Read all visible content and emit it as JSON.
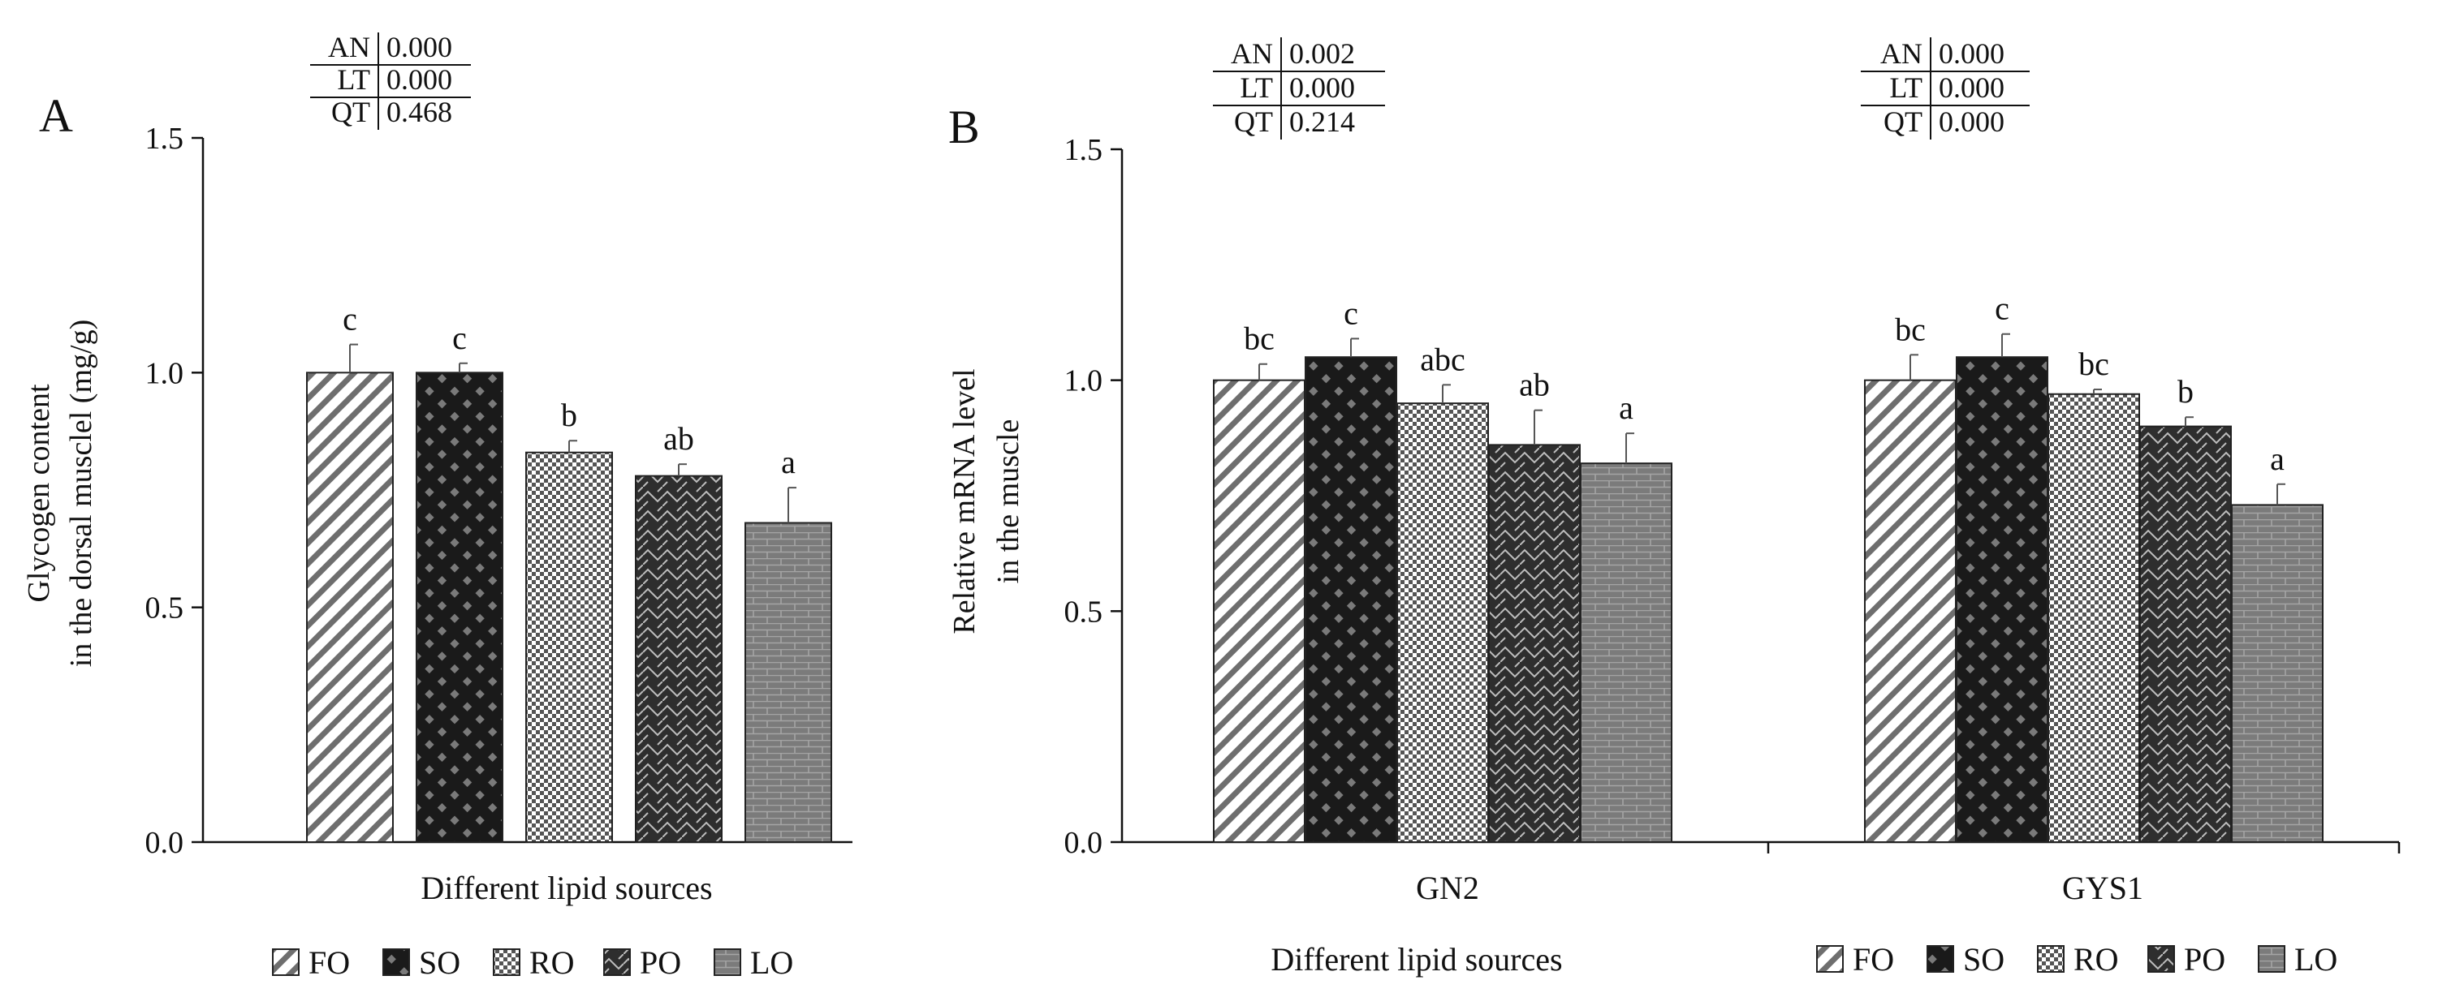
{
  "chart_data": [
    {
      "panel": "A",
      "type": "bar",
      "ylabel": [
        "Glycogen content",
        "in the dorsal musclel (mg/g)"
      ],
      "xlabel": "Different lipid sources",
      "ylim": [
        0,
        1.5
      ],
      "yticks": [
        "0.0",
        "0.5",
        "1.0",
        "1.5"
      ],
      "categories": [
        "FO",
        "SO",
        "RO",
        "PO",
        "LO"
      ],
      "values": [
        1.0,
        1.0,
        0.83,
        0.78,
        0.68
      ],
      "errors": [
        0.06,
        0.02,
        0.025,
        0.025,
        0.075
      ],
      "letters": [
        "c",
        "c",
        "b",
        "ab",
        "a"
      ],
      "stats": [
        {
          "label": "AN",
          "value": "0.000"
        },
        {
          "label": "LT",
          "value": "0.000"
        },
        {
          "label": "QT",
          "value": "0.468"
        }
      ],
      "legend": [
        "FO",
        "SO",
        "RO",
        "PO",
        "LO"
      ]
    },
    {
      "panel": "B",
      "type": "bar",
      "ylabel": [
        "Relative mRNA level",
        "in the muscle"
      ],
      "xlabel": "Different lipid sources",
      "ylim": [
        0,
        1.5
      ],
      "yticks": [
        "0.0",
        "0.5",
        "1.0",
        "1.5"
      ],
      "groups": [
        "GN2",
        "GYS1"
      ],
      "series": [
        {
          "name": "FO",
          "values": [
            1.0,
            1.0
          ],
          "errors": [
            0.035,
            0.055
          ],
          "letters": [
            "bc",
            "bc"
          ]
        },
        {
          "name": "SO",
          "values": [
            1.05,
            1.05
          ],
          "errors": [
            0.04,
            0.05
          ],
          "letters": [
            "c",
            "c"
          ]
        },
        {
          "name": "RO",
          "values": [
            0.95,
            0.97
          ],
          "errors": [
            0.04,
            0.01
          ],
          "letters": [
            "abc",
            "bc"
          ]
        },
        {
          "name": "PO",
          "values": [
            0.86,
            0.9
          ],
          "errors": [
            0.075,
            0.02
          ],
          "letters": [
            "ab",
            "b"
          ]
        },
        {
          "name": "LO",
          "values": [
            0.82,
            0.73
          ],
          "errors": [
            0.065,
            0.045
          ],
          "letters": [
            "a",
            "a"
          ]
        }
      ],
      "stats": [
        [
          {
            "label": "AN",
            "value": "0.002"
          },
          {
            "label": "LT",
            "value": "0.000"
          },
          {
            "label": "QT",
            "value": "0.214"
          }
        ],
        [
          {
            "label": "AN",
            "value": "0.000"
          },
          {
            "label": "LT",
            "value": "0.000"
          },
          {
            "label": "QT",
            "value": "0.000"
          }
        ]
      ],
      "legend": [
        "FO",
        "SO",
        "RO",
        "PO",
        "LO"
      ]
    }
  ]
}
